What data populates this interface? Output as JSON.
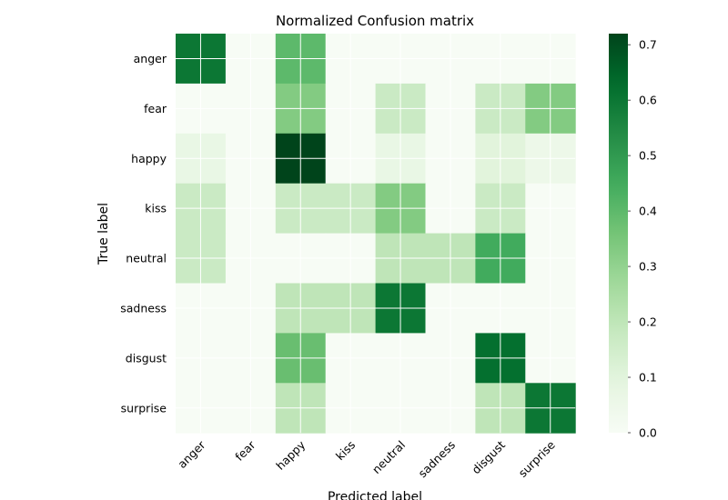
{
  "chart_data": {
    "type": "heatmap",
    "title": "Normalized Confusion matrix",
    "xlabel": "Predicted label",
    "ylabel": "True label",
    "x_categories": [
      "anger",
      "fear",
      "happy",
      "kiss",
      "neutral",
      "sadness",
      "disgust",
      "surprise"
    ],
    "y_categories": [
      "anger",
      "fear",
      "happy",
      "kiss",
      "neutral",
      "sadness",
      "disgust",
      "surprise"
    ],
    "values": [
      [
        0.6,
        0.0,
        0.4,
        0.0,
        0.0,
        0.0,
        0.0,
        0.0
      ],
      [
        0.0,
        0.0,
        0.33,
        0.0,
        0.17,
        0.0,
        0.17,
        0.33
      ],
      [
        0.07,
        0.0,
        0.72,
        0.0,
        0.07,
        0.0,
        0.1,
        0.05
      ],
      [
        0.17,
        0.0,
        0.17,
        0.17,
        0.33,
        0.0,
        0.17,
        0.0
      ],
      [
        0.17,
        0.0,
        0.0,
        0.0,
        0.2,
        0.2,
        0.45,
        0.0
      ],
      [
        0.0,
        0.0,
        0.2,
        0.2,
        0.6,
        0.0,
        0.0,
        0.0
      ],
      [
        0.0,
        0.0,
        0.38,
        0.0,
        0.0,
        0.0,
        0.62,
        0.0
      ],
      [
        0.0,
        0.0,
        0.2,
        0.0,
        0.0,
        0.0,
        0.2,
        0.6
      ]
    ],
    "vmin": 0.0,
    "vmax": 0.72,
    "colormap": "Greens",
    "colorbar_ticks": [
      0.0,
      0.1,
      0.2,
      0.3,
      0.4,
      0.5,
      0.6,
      0.7
    ],
    "colorbar_tick_labels": [
      "0.0",
      "0.1",
      "0.2",
      "0.3",
      "0.4",
      "0.5",
      "0.6",
      "0.7"
    ],
    "grid": true
  }
}
